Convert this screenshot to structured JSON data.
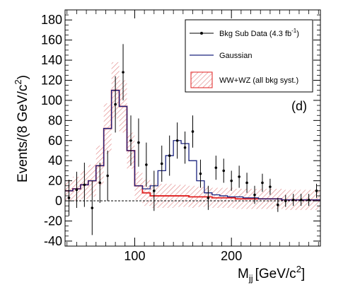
{
  "chart_data": {
    "type": "line",
    "xlabel_main": "M",
    "xlabel_sub": "jj",
    "xlabel_unit": "[GeV/c",
    "xlabel_sup": "2",
    "xlabel_close": "]",
    "ylabel_main": "Events/(8 GeV/c",
    "ylabel_sup": "2",
    "ylabel_close": ")",
    "panel_label": "(d)",
    "xlim": [
      28,
      292
    ],
    "ylim": [
      -45,
      190
    ],
    "x_ticks": [
      100,
      200
    ],
    "x_tick_labels": [
      "100",
      "200"
    ],
    "y_ticks": [
      -40,
      -20,
      0,
      20,
      40,
      60,
      80,
      100,
      120,
      140,
      160,
      180
    ],
    "y_tick_labels": [
      "-40",
      "-20",
      "0",
      "20",
      "40",
      "60",
      "80",
      "100",
      "120",
      "140",
      "160",
      "180"
    ],
    "legend": [
      {
        "key": "data",
        "label_main": "Bkg Sub Data (4.3 fb",
        "label_sup": "-1",
        "label_close": ")"
      },
      {
        "key": "gauss",
        "label_main": "Gaussian"
      },
      {
        "key": "wwwz",
        "label_main": "WW+WZ (all bkg syst.)"
      }
    ],
    "bin_edges": [
      28,
      36,
      44,
      52,
      60,
      68,
      76,
      84,
      92,
      100,
      108,
      116,
      124,
      132,
      140,
      148,
      156,
      164,
      172,
      180,
      188,
      196,
      204,
      212,
      220,
      228,
      236,
      244,
      252,
      260,
      268,
      276,
      284,
      292
    ],
    "series": [
      {
        "name": "Bkg Sub Data (4.3 fb-1)",
        "kind": "points",
        "x": [
          32,
          40,
          48,
          56,
          64,
          72,
          80,
          88,
          96,
          104,
          112,
          120,
          128,
          136,
          144,
          152,
          160,
          168,
          176,
          184,
          192,
          200,
          208,
          216,
          224,
          232,
          240,
          248,
          256,
          264,
          272,
          280,
          288
        ],
        "y": [
          3,
          11,
          16,
          -7,
          18,
          25,
          96,
          128,
          60,
          58,
          36,
          10,
          37,
          45,
          60,
          53,
          69,
          27,
          3,
          33,
          30,
          20,
          24,
          18,
          6,
          18,
          14,
          -4,
          0,
          1,
          1,
          1,
          10
        ],
        "err": [
          18,
          18,
          22,
          27,
          20,
          25,
          28,
          28,
          25,
          24,
          22,
          20,
          18,
          20,
          18,
          16,
          16,
          14,
          12,
          12,
          12,
          10,
          11,
          10,
          9,
          9,
          8,
          7,
          6,
          6,
          6,
          6,
          7
        ],
        "color": "#000000"
      },
      {
        "name": "Gaussian",
        "kind": "step",
        "values": [
          10,
          12,
          16,
          20,
          35,
          72,
          110,
          94,
          50,
          15,
          12,
          15,
          30,
          45,
          60,
          57,
          40,
          20,
          8,
          6,
          5,
          4,
          4,
          3,
          3,
          2,
          2,
          2,
          1,
          1,
          1,
          1,
          1
        ],
        "color": "#1a237e"
      },
      {
        "name": "WW+WZ (all bkg syst.)",
        "kind": "step_band",
        "values": [
          10,
          12,
          16,
          20,
          35,
          72,
          110,
          94,
          50,
          15,
          8,
          5,
          5,
          5,
          5,
          5,
          4,
          4,
          4,
          3,
          3,
          3,
          2,
          2,
          2,
          2,
          2,
          2,
          1,
          1,
          1,
          1,
          1
        ],
        "band": [
          10,
          12,
          14,
          16,
          20,
          25,
          28,
          26,
          18,
          14,
          13,
          12,
          12,
          12,
          11,
          11,
          11,
          10,
          10,
          10,
          10,
          10,
          10,
          10,
          10,
          10,
          10,
          10,
          10,
          10,
          10,
          10,
          10
        ],
        "color": "#e02020",
        "band_color": "#e08080"
      }
    ],
    "grid": false,
    "legend_position": "top-right"
  }
}
